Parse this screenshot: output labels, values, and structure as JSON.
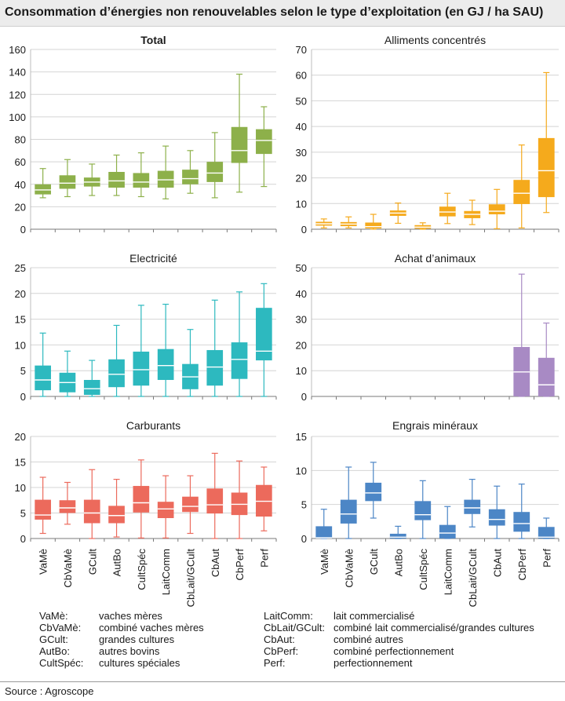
{
  "title": "Consommation d’énergies non renouvelables selon le type d’exploitation (en GJ / ha SAU)",
  "source": "Source : Agroscope",
  "categories": [
    "VaMè",
    "CbVaMè",
    "GCult",
    "AutBo",
    "CultSpéc",
    "LaitComm",
    "CbLait/GCult",
    "CbAut",
    "CbPerf",
    "Perf"
  ],
  "legend": {
    "left": [
      {
        "abbr": "VaMè:",
        "desc": "vaches mères"
      },
      {
        "abbr": "CbVaMè:",
        "desc": "combiné vaches mères"
      },
      {
        "abbr": "GCult:",
        "desc": "grandes cultures"
      },
      {
        "abbr": "AutBo:",
        "desc": "autres bovins"
      },
      {
        "abbr": "CultSpéc:",
        "desc": "cultures spéciales"
      }
    ],
    "right": [
      {
        "abbr": "LaitComm:",
        "desc": "lait commercialisé"
      },
      {
        "abbr": "CbLait/GCult:",
        "desc": "combiné lait commercialisé/grandes cultures"
      },
      {
        "abbr": "CbAut:",
        "desc": "combiné autres"
      },
      {
        "abbr": "CbPerf:",
        "desc": "combiné perfectionnement"
      },
      {
        "abbr": "Perf:",
        "desc": "perfectionnement"
      }
    ]
  },
  "chart_data": [
    {
      "type": "boxplot",
      "title": "Total",
      "bold_title": true,
      "color": "#8db04a",
      "ylim": [
        0,
        160
      ],
      "yticks": [
        0,
        20,
        40,
        60,
        80,
        100,
        120,
        140,
        160
      ],
      "boxes": [
        {
          "min": 28,
          "q1": 31,
          "median": 35,
          "q3": 40,
          "max": 54
        },
        {
          "min": 29,
          "q1": 36,
          "median": 41,
          "q3": 48,
          "max": 62
        },
        {
          "min": 30,
          "q1": 38,
          "median": 42,
          "q3": 46,
          "max": 58
        },
        {
          "min": 30,
          "q1": 37,
          "median": 43,
          "q3": 51,
          "max": 66
        },
        {
          "min": 29,
          "q1": 37,
          "median": 42,
          "q3": 50,
          "max": 68
        },
        {
          "min": 27,
          "q1": 37,
          "median": 44,
          "q3": 52,
          "max": 74
        },
        {
          "min": 32,
          "q1": 40,
          "median": 45,
          "q3": 53,
          "max": 70
        },
        {
          "min": 28,
          "q1": 42,
          "median": 50,
          "q3": 60,
          "max": 86
        },
        {
          "min": 33,
          "q1": 59,
          "median": 70,
          "q3": 91,
          "max": 138
        },
        {
          "min": 38,
          "q1": 67,
          "median": 79,
          "q3": 89,
          "max": 109
        }
      ]
    },
    {
      "type": "boxplot",
      "title": "Alliments concentrés",
      "bold_title": false,
      "color": "#f5aa1c",
      "ylim": [
        0,
        70
      ],
      "yticks": [
        0,
        10,
        20,
        30,
        40,
        50,
        60,
        70
      ],
      "boxes": [
        {
          "min": 0.5,
          "q1": 1.4,
          "median": 2.1,
          "q3": 2.9,
          "max": 4.0
        },
        {
          "min": 0.5,
          "q1": 1.2,
          "median": 2.0,
          "q3": 2.8,
          "max": 4.8
        },
        {
          "min": 0,
          "q1": 0.3,
          "median": 1.0,
          "q3": 2.6,
          "max": 5.8
        },
        {
          "min": 2.3,
          "q1": 5.2,
          "median": 6.3,
          "q3": 7.3,
          "max": 10.2
        },
        {
          "min": 0,
          "q1": 0.2,
          "median": 0.8,
          "q3": 1.6,
          "max": 2.5
        },
        {
          "min": 2.2,
          "q1": 5.0,
          "median": 6.7,
          "q3": 8.8,
          "max": 14.0
        },
        {
          "min": 1.8,
          "q1": 4.3,
          "median": 5.8,
          "q3": 7.1,
          "max": 11.3
        },
        {
          "min": 0.2,
          "q1": 5.8,
          "median": 7.0,
          "q3": 9.7,
          "max": 15.5
        },
        {
          "min": 0.5,
          "q1": 9.8,
          "median": 14.0,
          "q3": 19.2,
          "max": 32.8
        },
        {
          "min": 6.5,
          "q1": 12.5,
          "median": 22.8,
          "q3": 35.5,
          "max": 61.0
        }
      ]
    },
    {
      "type": "boxplot",
      "title": "Electricité",
      "bold_title": false,
      "color": "#2db9bf",
      "ylim": [
        0,
        25
      ],
      "yticks": [
        0,
        5,
        10,
        15,
        20,
        25
      ],
      "boxes": [
        {
          "min": 0,
          "q1": 1.2,
          "median": 3.2,
          "q3": 6.0,
          "max": 12.3
        },
        {
          "min": 0,
          "q1": 0.8,
          "median": 2.7,
          "q3": 4.6,
          "max": 8.8
        },
        {
          "min": 0,
          "q1": 0.3,
          "median": 1.5,
          "q3": 3.2,
          "max": 7.0
        },
        {
          "min": 0,
          "q1": 1.8,
          "median": 4.3,
          "q3": 7.2,
          "max": 13.8
        },
        {
          "min": 0,
          "q1": 2.1,
          "median": 5.2,
          "q3": 8.7,
          "max": 17.7
        },
        {
          "min": 0,
          "q1": 3.2,
          "median": 6.0,
          "q3": 9.2,
          "max": 17.9
        },
        {
          "min": 0,
          "q1": 1.4,
          "median": 3.8,
          "q3": 6.3,
          "max": 13.0
        },
        {
          "min": 0,
          "q1": 2.1,
          "median": 5.7,
          "q3": 9.0,
          "max": 18.7
        },
        {
          "min": 0,
          "q1": 3.4,
          "median": 7.2,
          "q3": 10.5,
          "max": 20.3
        },
        {
          "min": 0,
          "q1": 7.0,
          "median": 8.8,
          "q3": 17.2,
          "max": 21.9
        }
      ]
    },
    {
      "type": "boxplot",
      "title": "Achat d’animaux",
      "bold_title": false,
      "color": "#a88ac4",
      "ylim": [
        0,
        50
      ],
      "yticks": [
        0,
        10,
        20,
        30,
        40,
        50
      ],
      "boxes": [
        null,
        null,
        null,
        null,
        null,
        null,
        null,
        null,
        {
          "min": 0,
          "q1": 0,
          "median": 9.5,
          "q3": 19.2,
          "max": 47.5
        },
        {
          "min": 0,
          "q1": 0,
          "median": 4.5,
          "q3": 15.0,
          "max": 28.5
        }
      ]
    },
    {
      "type": "boxplot",
      "title": "Carburants",
      "bold_title": false,
      "color": "#ec6a5c",
      "ylim": [
        0,
        20
      ],
      "yticks": [
        0,
        5,
        10,
        15,
        20
      ],
      "boxes": [
        {
          "min": 1.0,
          "q1": 3.7,
          "median": 4.6,
          "q3": 7.6,
          "max": 12.0
        },
        {
          "min": 2.8,
          "q1": 5.0,
          "median": 6.0,
          "q3": 7.5,
          "max": 11.0
        },
        {
          "min": 0,
          "q1": 3.0,
          "median": 5.0,
          "q3": 7.6,
          "max": 13.5
        },
        {
          "min": 0.3,
          "q1": 3.0,
          "median": 4.5,
          "q3": 6.4,
          "max": 11.6
        },
        {
          "min": 0.1,
          "q1": 5.1,
          "median": 7.0,
          "q3": 10.3,
          "max": 15.4
        },
        {
          "min": 0.1,
          "q1": 4.0,
          "median": 5.8,
          "q3": 7.2,
          "max": 12.3
        },
        {
          "min": 1.0,
          "q1": 5.2,
          "median": 6.3,
          "q3": 8.2,
          "max": 12.3
        },
        {
          "min": 0,
          "q1": 4.9,
          "median": 6.6,
          "q3": 9.8,
          "max": 16.7
        },
        {
          "min": 0,
          "q1": 4.6,
          "median": 6.7,
          "q3": 9.0,
          "max": 15.2
        },
        {
          "min": 1.5,
          "q1": 4.3,
          "median": 7.3,
          "q3": 10.5,
          "max": 14.0
        }
      ]
    },
    {
      "type": "boxplot",
      "title": "Engrais minéraux",
      "bold_title": false,
      "color": "#4c86c6",
      "ylim": [
        0,
        15
      ],
      "yticks": [
        0,
        5,
        10,
        15
      ],
      "boxes": [
        {
          "min": 0,
          "q1": 0,
          "median": 0.1,
          "q3": 1.8,
          "max": 4.3
        },
        {
          "min": 0,
          "q1": 2.2,
          "median": 3.6,
          "q3": 5.7,
          "max": 10.5
        },
        {
          "min": 3.0,
          "q1": 5.5,
          "median": 6.7,
          "q3": 8.2,
          "max": 11.2
        },
        {
          "min": 0,
          "q1": 0,
          "median": 0.2,
          "q3": 0.7,
          "max": 1.8
        },
        {
          "min": 0,
          "q1": 2.7,
          "median": 3.5,
          "q3": 5.5,
          "max": 8.5
        },
        {
          "min": 0,
          "q1": 0,
          "median": 0.8,
          "q3": 2.0,
          "max": 4.7
        },
        {
          "min": 1.7,
          "q1": 3.6,
          "median": 4.5,
          "q3": 5.7,
          "max": 8.7
        },
        {
          "min": 0,
          "q1": 1.9,
          "median": 2.8,
          "q3": 4.3,
          "max": 7.7
        },
        {
          "min": 0,
          "q1": 1.0,
          "median": 2.2,
          "q3": 3.9,
          "max": 8.0
        },
        {
          "min": 0,
          "q1": 0,
          "median": 0.2,
          "q3": 1.7,
          "max": 3.0
        }
      ]
    }
  ]
}
